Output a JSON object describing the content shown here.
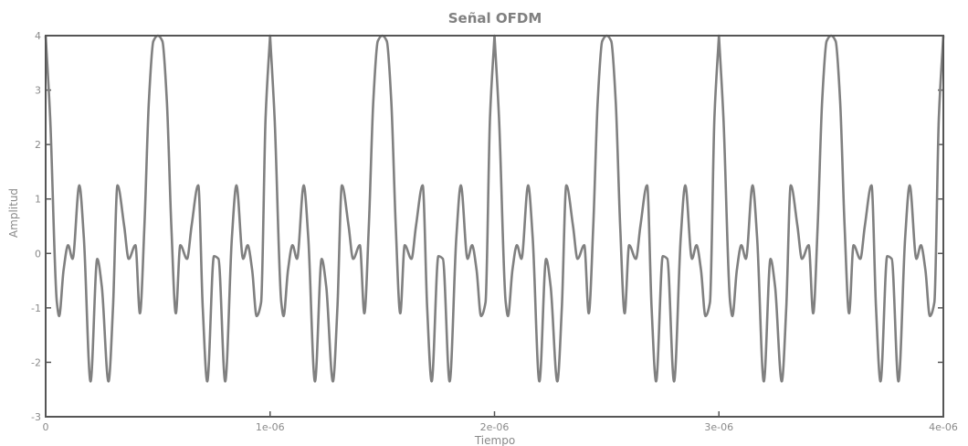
{
  "chart_data": {
    "type": "line",
    "title": "Señal OFDM",
    "xlabel": "Tiempo",
    "ylabel": "Amplitud",
    "xlim": [
      0,
      4e-06
    ],
    "ylim": [
      -3,
      4
    ],
    "xticks": [
      0,
      1e-06,
      2e-06,
      3e-06,
      4e-06
    ],
    "xtick_labels": [
      "0",
      "1e-06",
      "2e-06",
      "3e-06",
      "4e-06"
    ],
    "yticks": [
      -3,
      -2,
      -1,
      0,
      1,
      2,
      3,
      4
    ],
    "ytick_labels": [
      "-3",
      "-2",
      "-1",
      "0",
      "1",
      "2",
      "3",
      "4"
    ],
    "grid": false,
    "legend": "none",
    "series_color": "#808080",
    "axis_color": "#555555",
    "period": 1e-06,
    "series": [
      {
        "x": [
          0,
          2e-08,
          5e-08,
          6e-08,
          8e-08,
          1e-07,
          1.2e-07,
          1.5e-07,
          1.7e-07,
          2e-07,
          2.3e-07,
          2.5e-07,
          2.8e-07,
          3e-07,
          3.2e-07,
          3.5e-07,
          3.7e-07,
          4e-07,
          4.2e-07,
          4.4e-07,
          4.6e-07,
          4.8e-07,
          5e-07,
          5.2e-07,
          5.4e-07,
          5.6e-07,
          5.8e-07,
          6e-07,
          6.3e-07,
          6.5e-07,
          6.8e-07,
          7e-07,
          7.2e-07,
          7.5e-07,
          7.7e-07,
          8e-07,
          8.3e-07,
          8.5e-07,
          8.8e-07,
          9e-07,
          9.2e-07,
          9.4e-07,
          9.6e-07,
          9.8e-07,
          1e-06
        ],
        "y": [
          4.0,
          2.5,
          -0.9,
          -1.15,
          -0.3,
          0.15,
          -0.1,
          1.25,
          0.3,
          -2.35,
          -0.1,
          -0.6,
          -2.35,
          -1.0,
          1.25,
          0.5,
          -0.1,
          0.15,
          -1.1,
          0.5,
          2.8,
          3.9,
          4.0,
          3.9,
          2.8,
          0.5,
          -1.1,
          0.15,
          -0.1,
          0.5,
          1.25,
          -1.0,
          -2.35,
          -0.05,
          -0.1,
          -2.35,
          0.3,
          1.25,
          -0.1,
          0.15,
          -0.3,
          -1.15,
          -0.9,
          2.5,
          4.0
        ]
      }
    ]
  }
}
